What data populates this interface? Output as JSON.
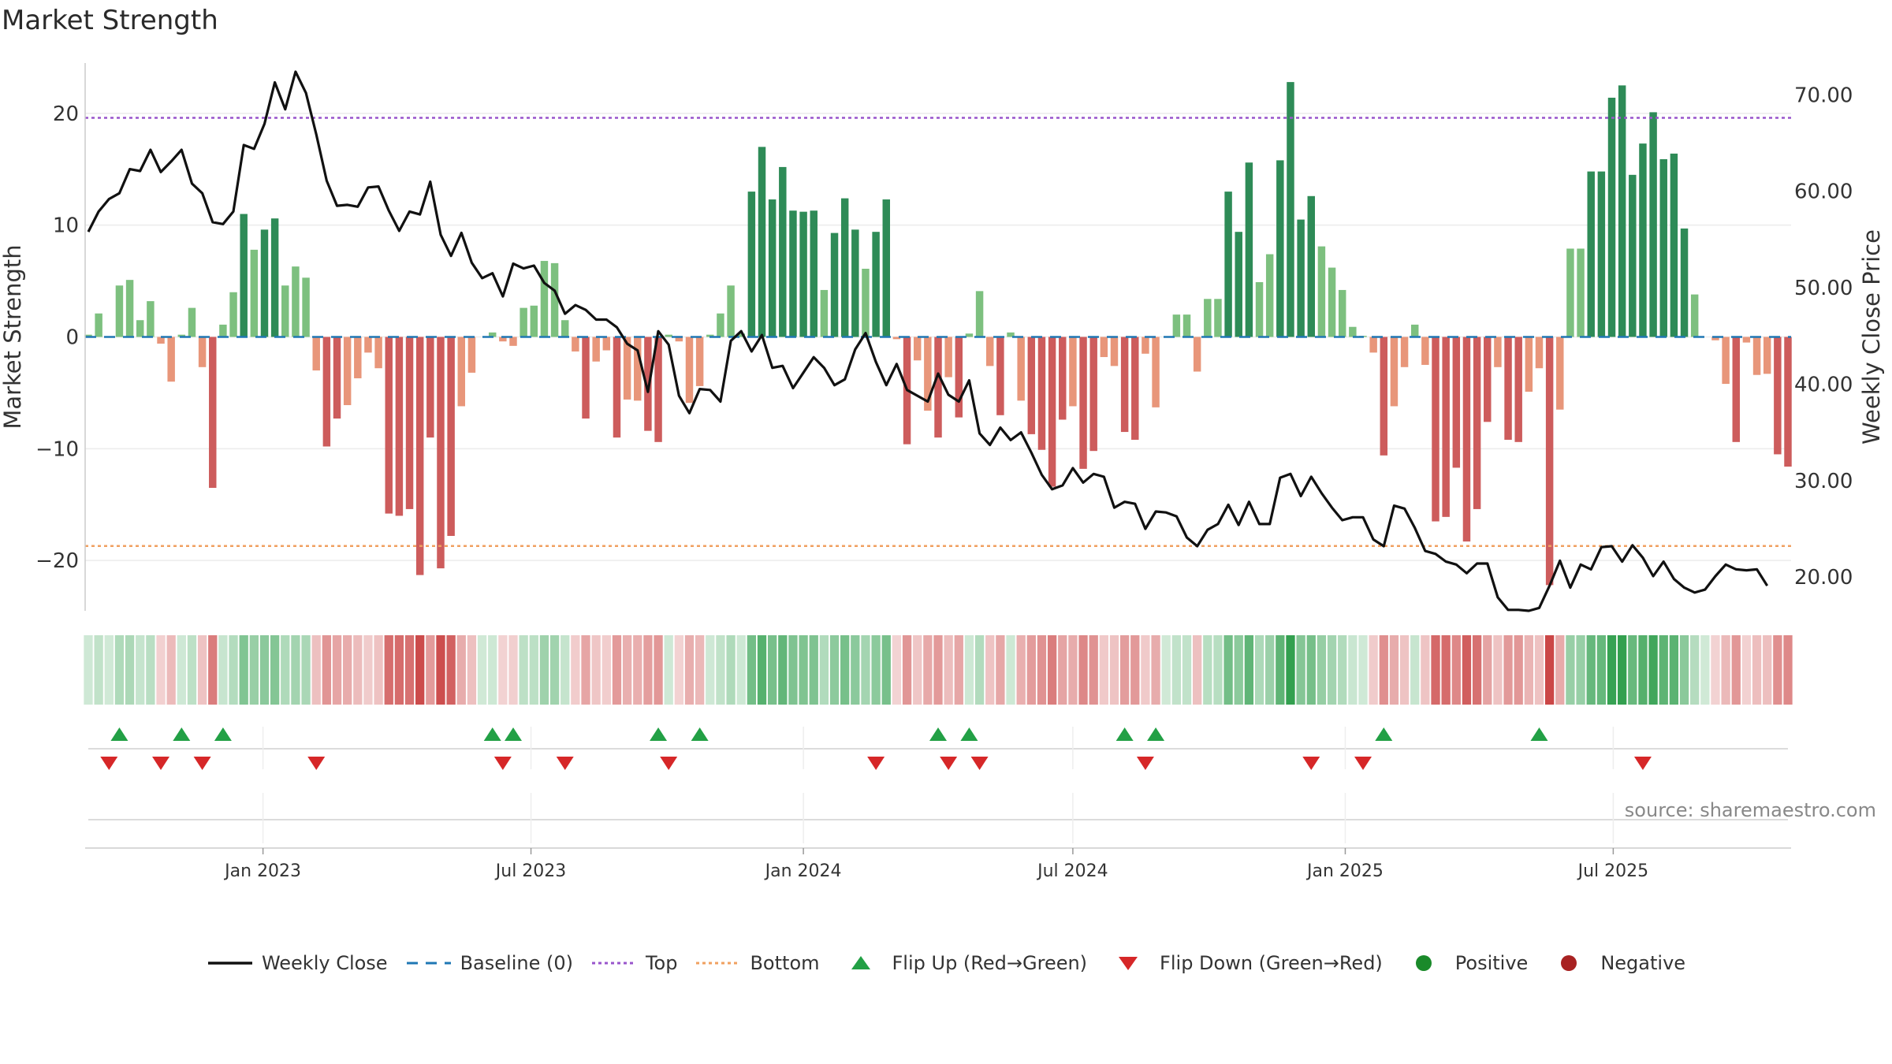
{
  "title": "Market Strength",
  "source_text": "source: sharemaestro.com",
  "legend": [
    {
      "label": "Weekly Close",
      "symbol": "line",
      "color": "#111111"
    },
    {
      "label": "Baseline (0)",
      "symbol": "dash",
      "color": "#1f77b4"
    },
    {
      "label": "Top",
      "symbol": "dot",
      "color": "#9955cc"
    },
    {
      "label": "Bottom",
      "symbol": "dot",
      "color": "#f0a060"
    },
    {
      "label": "Flip Up (Red→Green)",
      "symbol": "tri-up",
      "color": "#22a045"
    },
    {
      "label": "Flip Down (Green→Red)",
      "symbol": "tri-down",
      "color": "#d62728"
    },
    {
      "label": "Positive",
      "symbol": "circle",
      "color": "#1a8a2a"
    },
    {
      "label": "Negative",
      "symbol": "circle",
      "color": "#a82222"
    }
  ],
  "chart_data": {
    "type": "bar",
    "ylabel_left": "Market Strength",
    "ylabel_right": "Weekly Close Price",
    "ylim_left": [
      -24.5,
      24.5
    ],
    "yticks_left": [
      -20,
      -10,
      0,
      10,
      20
    ],
    "ytick_labels_left": [
      "−20",
      "−10",
      "0",
      "10",
      "20"
    ],
    "ylim_right": [
      16.5,
      73.3
    ],
    "yticks_right": [
      20,
      30,
      40,
      50,
      60,
      70
    ],
    "ytick_labels_right": [
      "20.00",
      "30.00",
      "40.00",
      "50.00",
      "60.00",
      "70.00"
    ],
    "top_line": 19.6,
    "bottom_line": -18.7,
    "x_start": "2022-09-05",
    "week_step_days": 7,
    "xticks": [
      {
        "date": "2023-01-01",
        "label": "Jan 2023"
      },
      {
        "date": "2023-07-01",
        "label": "Jul 2023"
      },
      {
        "date": "2024-01-01",
        "label": "Jan 2024"
      },
      {
        "date": "2024-07-01",
        "label": "Jul 2024"
      },
      {
        "date": "2025-01-01",
        "label": "Jan 2025"
      },
      {
        "date": "2025-07-01",
        "label": "Jul 2025"
      }
    ],
    "strength": [
      0.2,
      2.1,
      0,
      4.6,
      5.1,
      1.5,
      3.2,
      -0.6,
      -4.0,
      0.2,
      2.6,
      -2.7,
      -13.5,
      1.1,
      4.0,
      11.0,
      7.8,
      9.6,
      10.6,
      4.6,
      6.3,
      5.3,
      -3.0,
      -9.8,
      -7.3,
      -6.1,
      -3.7,
      -1.4,
      -2.8,
      -15.8,
      -16.0,
      -15.4,
      -21.3,
      -9.0,
      -20.7,
      -17.8,
      -6.2,
      -3.2,
      0,
      0.4,
      -0.4,
      -0.8,
      2.6,
      2.8,
      6.8,
      6.6,
      1.5,
      -1.3,
      -7.3,
      -2.2,
      -1.2,
      -9.0,
      -5.6,
      -5.7,
      -8.4,
      -9.4,
      0.2,
      -0.4,
      -5.9,
      -4.4,
      0.2,
      2.1,
      4.6,
      0.3,
      13.0,
      17.0,
      12.3,
      15.2,
      11.3,
      11.2,
      11.3,
      4.2,
      9.3,
      12.4,
      9.6,
      6.1,
      9.4,
      12.3,
      -0.2,
      -9.6,
      -2.1,
      -6.6,
      -9.0,
      -3.6,
      -7.2,
      0.3,
      4.1,
      -2.6,
      -7.0,
      0.4,
      -5.7,
      -8.7,
      -10.1,
      -13.4,
      -7.4,
      -6.2,
      -11.8,
      -10.2,
      -1.8,
      -2.6,
      -8.5,
      -9.2,
      -1.5,
      -6.3,
      0,
      2.0,
      2.0,
      -3.1,
      3.4,
      3.4,
      13.0,
      9.4,
      15.6,
      4.9,
      7.4,
      15.8,
      22.8,
      10.5,
      12.6,
      8.1,
      6.2,
      4.2,
      0.9,
      0.1,
      -1.4,
      -10.6,
      -6.2,
      -2.7,
      1.1,
      -2.5,
      -16.5,
      -16.1,
      -11.7,
      -18.3,
      -15.4,
      -7.6,
      -2.7,
      -9.2,
      -9.4,
      -4.9,
      -2.8,
      -22.2,
      -6.5,
      7.9,
      7.9,
      14.8,
      14.8,
      21.4,
      22.5,
      14.5,
      17.3,
      20.1,
      15.9,
      16.4,
      9.7,
      3.8,
      0,
      -0.3,
      -4.2,
      -9.4,
      -0.5,
      -3.4,
      -3.3,
      -10.5,
      -11.6
    ],
    "weekly_close": [
      55.8,
      57.9,
      59.2,
      59.8,
      62.3,
      62.1,
      64.3,
      62.0,
      63.1,
      64.3,
      60.8,
      59.8,
      56.8,
      56.6,
      57.9,
      64.8,
      64.4,
      67.0,
      71.3,
      68.5,
      72.4,
      70.2,
      65.9,
      61.1,
      58.5,
      58.6,
      58.4,
      60.4,
      60.5,
      58.0,
      55.9,
      57.9,
      57.6,
      61.0,
      55.5,
      53.3,
      55.7,
      52.6,
      51.0,
      51.5,
      49.1,
      52.5,
      52.0,
      52.3,
      50.5,
      49.7,
      47.3,
      48.2,
      47.7,
      46.7,
      46.7,
      45.9,
      44.2,
      43.5,
      39.2,
      45.5,
      44.1,
      38.8,
      37.0,
      39.5,
      39.4,
      38.2,
      44.5,
      45.5,
      43.4,
      45.1,
      41.7,
      41.9,
      39.6,
      41.2,
      42.8,
      41.7,
      39.9,
      40.5,
      43.6,
      45.3,
      42.3,
      39.9,
      42.1,
      39.4,
      38.8,
      38.2,
      41.1,
      38.9,
      38.2,
      40.4,
      34.9,
      33.7,
      35.5,
      34.2,
      35.0,
      32.9,
      30.6,
      29.1,
      29.5,
      31.3,
      29.8,
      30.7,
      30.4,
      27.2,
      27.8,
      27.6,
      25.0,
      26.8,
      26.7,
      26.3,
      24.1,
      23.2,
      24.9,
      25.5,
      27.5,
      25.4,
      27.8,
      25.5,
      25.5,
      30.3,
      30.7,
      28.4,
      30.4,
      28.7,
      27.2,
      25.9,
      26.2,
      26.2,
      23.9,
      23.2,
      27.4,
      27.1,
      25.1,
      22.7,
      22.4,
      21.6,
      21.3,
      20.4,
      21.4,
      21.4,
      17.9,
      16.6,
      16.6,
      16.5,
      16.8,
      19.1,
      21.7,
      18.9,
      21.3,
      20.8,
      23.1,
      23.2,
      21.6,
      23.3,
      22.0,
      20.1,
      21.6,
      19.8,
      18.9,
      18.4,
      18.7,
      20.1,
      21.3,
      20.8,
      20.7,
      20.8,
      19.1
    ],
    "flip_up_weeks": [
      3,
      9,
      13,
      39,
      41,
      55,
      59,
      82,
      85,
      100,
      103,
      125,
      140
    ],
    "flip_down_weeks": [
      2,
      7,
      11,
      22,
      40,
      46,
      56,
      76,
      83,
      86,
      102,
      118,
      123,
      150
    ]
  }
}
